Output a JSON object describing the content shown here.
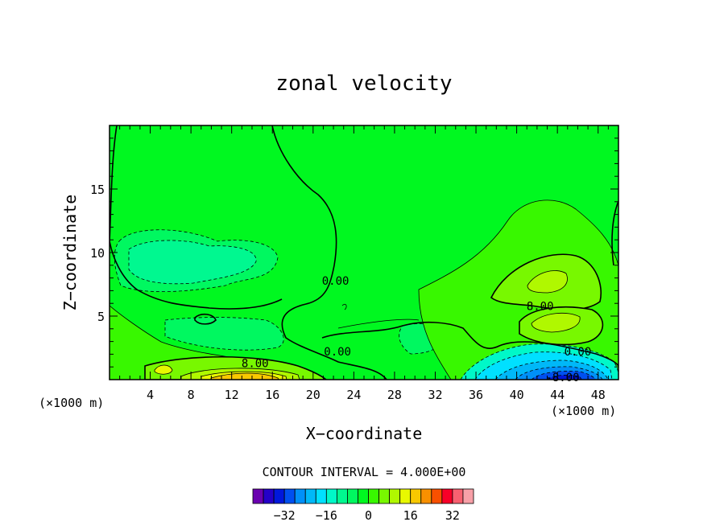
{
  "chart_data": {
    "type": "heatmap",
    "title": "zonal velocity",
    "xlabel": "X−coordinate",
    "ylabel": "Z−coordinate",
    "x_unit_left": "(×1000 m)",
    "x_unit_right": "(×1000 m)",
    "xlim": [
      0,
      50
    ],
    "ylim": [
      0,
      20
    ],
    "xticks": [
      4,
      8,
      12,
      16,
      20,
      24,
      28,
      32,
      36,
      40,
      44,
      48
    ],
    "yticks": [
      5,
      10,
      15
    ],
    "contour_interval_label": "CONTOUR INTERVAL = 4.000E+00",
    "contour_labels": [
      {
        "text": "0.00",
        "x": 22.2,
        "y": 7.8
      },
      {
        "text": "0.00",
        "x": 22.4,
        "y": 2.2
      },
      {
        "text": "8.00",
        "x": 14.3,
        "y": 1.3
      },
      {
        "text": "8.00",
        "x": 42.3,
        "y": 5.8
      },
      {
        "text": "0.00",
        "x": 46.0,
        "y": 2.2
      },
      {
        "text": "-8.00",
        "x": 44.5,
        "y": 0.2
      }
    ],
    "colorbar": {
      "levels": [
        -40,
        -36,
        -32,
        -28,
        -24,
        -20,
        -16,
        -12,
        -8,
        -4,
        0,
        4,
        8,
        12,
        16,
        20,
        24,
        28,
        32,
        36
      ],
      "tick_values": [
        -32,
        -16,
        0,
        16,
        32
      ],
      "tick_labels": [
        "−32",
        "−16",
        "0",
        "16",
        "32"
      ],
      "colors": [
        "#6a00b0",
        "#2400c8",
        "#0018dc",
        "#0050f0",
        "#0090f8",
        "#00b8f8",
        "#00e0ff",
        "#00f8c8",
        "#00f890",
        "#00f860",
        "#00f820",
        "#38f800",
        "#78f800",
        "#b0f800",
        "#e8f800",
        "#f8c800",
        "#f89000",
        "#f85000",
        "#f80028",
        "#f86070",
        "#f8a0a8"
      ]
    },
    "field": [
      {
        "value": -12,
        "x": 45.0,
        "y": 1.6,
        "w": 4.8,
        "h": 1.8
      },
      {
        "value": -20,
        "x": 44.5,
        "y": 0.9,
        "w": 3.2,
        "h": 1.0
      },
      {
        "value": -28,
        "x": 44.0,
        "y": 0.35,
        "w": 2.0,
        "h": 0.5
      },
      {
        "value": 4,
        "x": 13.5,
        "y": 1.4,
        "w": 10.0,
        "h": 1.3
      },
      {
        "value": 8,
        "x": 14.0,
        "y": 0.8,
        "w": 6.0,
        "h": 0.8
      },
      {
        "value": 12,
        "x": 14.5,
        "y": 0.35,
        "w": 3.0,
        "h": 0.4
      },
      {
        "value": 4,
        "x": 44.0,
        "y": 6.5,
        "w": 4.8,
        "h": 3.6
      },
      {
        "value": 8,
        "x": 43.5,
        "y": 7.6,
        "w": 2.5,
        "h": 1.3
      },
      {
        "value": 12,
        "x": 43.3,
        "y": 7.8,
        "w": 1.3,
        "h": 0.6
      },
      {
        "value": 8,
        "x": 44.5,
        "y": 4.9,
        "w": 3.0,
        "h": 1.2
      },
      {
        "value": 12,
        "x": 44.7,
        "y": 4.7,
        "w": 1.8,
        "h": 0.6
      },
      {
        "value": 8,
        "x": 5.0,
        "y": 0.9,
        "w": 1.4,
        "h": 0.5
      },
      {
        "value": 4,
        "x": 1.5,
        "y": 1.6,
        "w": 2.5,
        "h": 2.0
      }
    ]
  }
}
